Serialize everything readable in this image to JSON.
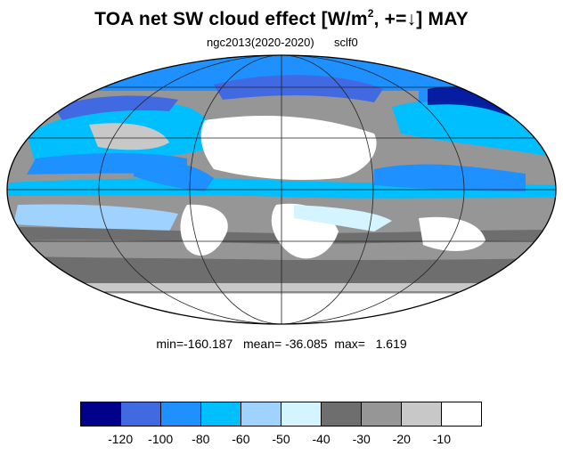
{
  "title": {
    "main": "TOA net SW cloud effect [W/m",
    "sup": "2",
    "rest": ", +=↓]  MAY"
  },
  "subtitle": {
    "left": "ngc2013(2020-2020)",
    "right": "sclf0"
  },
  "stats": {
    "text": "min=-160.187   mean= -36.085  max=   1.619"
  },
  "colorbar": {
    "colors": [
      "#00008b",
      "#4169e1",
      "#1e90ff",
      "#00bfff",
      "#a0d2ff",
      "#d4f4ff",
      "#6e6e6e",
      "#969696",
      "#c8c8c8",
      "#ffffff"
    ],
    "tick_labels": [
      "-120",
      "-100",
      "-80",
      "-60",
      "-50",
      "-40",
      "-30",
      "-20",
      "-10"
    ]
  }
}
